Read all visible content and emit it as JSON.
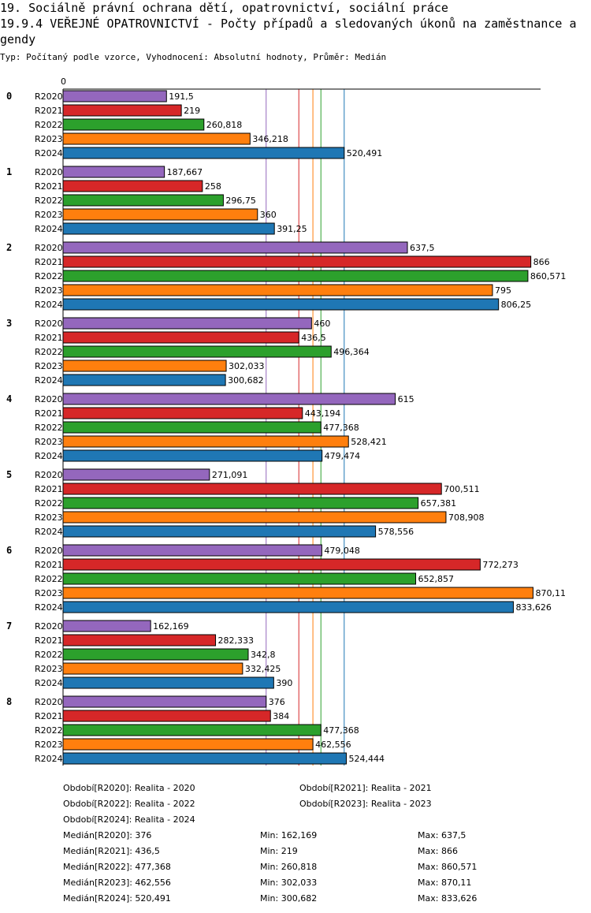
{
  "header": {
    "title_line1": "19. Sociálně právní ochrana dětí, opatrovnictví, sociální práce",
    "title_line2": "19.9.4 VEŘEJNÉ OPATROVNICTVÍ - Počty případů a sledovaných úkonů na zaměstnance a gendy",
    "subtitle": "Typ: Počítaný podle vzorce, Vyhodnocení: Absolutní hodnoty, Průměr: Medián"
  },
  "chart_data": {
    "type": "bar",
    "orientation": "horizontal",
    "x_axis_label": "0",
    "groups": [
      "0",
      "1",
      "2",
      "3",
      "4",
      "5",
      "6",
      "7",
      "8"
    ],
    "series": [
      {
        "name": "R2020",
        "color": "#9467bd",
        "values": [
          191.5,
          187.667,
          637.5,
          460,
          615,
          271.091,
          479.048,
          162.169,
          376
        ],
        "labels": [
          "191,5",
          "187,667",
          "637,5",
          "460",
          "615",
          "271,091",
          "479,048",
          "162,169",
          "376"
        ]
      },
      {
        "name": "R2021",
        "color": "#d62728",
        "values": [
          219,
          258,
          866,
          436.5,
          443.194,
          700.511,
          772.273,
          282.333,
          384
        ],
        "labels": [
          "219",
          "258",
          "866",
          "436,5",
          "443,194",
          "700,511",
          "772,273",
          "282,333",
          "384"
        ]
      },
      {
        "name": "R2022",
        "color": "#2ca02c",
        "values": [
          260.818,
          296.75,
          860.571,
          496.364,
          477.368,
          657.381,
          652.857,
          342.8,
          477.368
        ],
        "labels": [
          "260,818",
          "296,75",
          "860,571",
          "496,364",
          "477,368",
          "657,381",
          "652,857",
          "342,8",
          "477,368"
        ]
      },
      {
        "name": "R2023",
        "color": "#ff7f0e",
        "values": [
          346.218,
          360,
          795,
          302.033,
          528.421,
          708.908,
          870.11,
          332.425,
          462.556
        ],
        "labels": [
          "346,218",
          "360",
          "795",
          "302,033",
          "528,421",
          "708,908",
          "870,11",
          "332,425",
          "462,556"
        ]
      },
      {
        "name": "R2024",
        "color": "#1f77b4",
        "values": [
          520.491,
          391.25,
          806.25,
          300.682,
          479.474,
          578.556,
          833.626,
          390,
          524.444
        ],
        "labels": [
          "520,491",
          "391,25",
          "806,25",
          "300,682",
          "479,474",
          "578,556",
          "833,626",
          "390",
          "524,444"
        ]
      }
    ],
    "median_lines": [
      {
        "series": "R2020",
        "value": 376,
        "color": "#9467bd"
      },
      {
        "series": "R2021",
        "value": 436.5,
        "color": "#d62728"
      },
      {
        "series": "R2022",
        "value": 477.368,
        "color": "#2ca02c"
      },
      {
        "series": "R2023",
        "value": 462.556,
        "color": "#ff7f0e"
      },
      {
        "series": "R2024",
        "value": 520.491,
        "color": "#1f77b4"
      }
    ],
    "xlim": [
      0,
      882
    ]
  },
  "legend": {
    "periods": [
      "Období[R2020]: Realita - 2020",
      "Období[R2021]: Realita - 2021",
      "Období[R2022]: Realita - 2022",
      "Období[R2023]: Realita - 2023",
      "Období[R2024]: Realita - 2024"
    ],
    "stats": [
      {
        "median": "Medián[R2020]: 376",
        "min": "Min: 162,169",
        "max": "Max: 637,5"
      },
      {
        "median": "Medián[R2021]: 436,5",
        "min": "Min: 219",
        "max": "Max: 866"
      },
      {
        "median": "Medián[R2022]: 477,368",
        "min": "Min: 260,818",
        "max": "Max: 860,571"
      },
      {
        "median": "Medián[R2023]: 462,556",
        "min": "Min: 302,033",
        "max": "Max: 870,11"
      },
      {
        "median": "Medián[R2024]: 520,491",
        "min": "Min: 300,682",
        "max": "Max: 833,626"
      }
    ]
  }
}
